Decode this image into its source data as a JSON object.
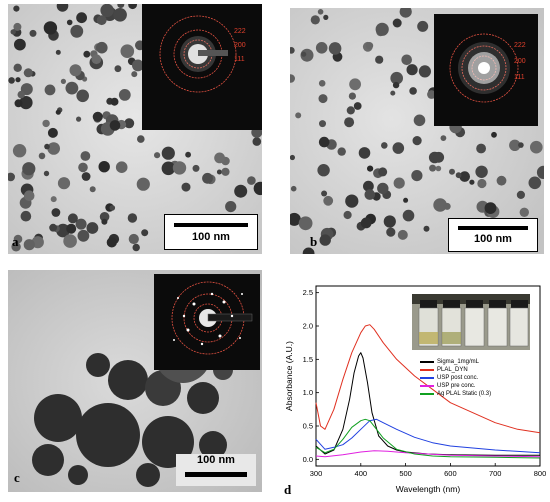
{
  "panels": {
    "a": {
      "label": "a",
      "scale": "100 nm",
      "rings": [
        "222",
        "200",
        "111"
      ]
    },
    "b": {
      "label": "b",
      "scale": "100 nm",
      "rings": [
        "222",
        "200",
        "111"
      ]
    },
    "c": {
      "label": "c",
      "scale": "100 nm"
    },
    "d": {
      "label": "d"
    }
  },
  "chart_data": {
    "type": "line",
    "xlabel": "Wavelength (nm)",
    "ylabel": "Absorbance (A.U.)",
    "xlim": [
      300,
      800
    ],
    "ylim": [
      -0.1,
      2.6
    ],
    "xticks": [
      300,
      400,
      500,
      600,
      700,
      800
    ],
    "yticks": [
      0.0,
      0.5,
      1.0,
      1.5,
      2.0,
      2.5
    ],
    "ytick_labels": [
      "0.0",
      "0.5",
      "1.0",
      "1.5",
      "2.0",
      "2.5"
    ],
    "legend_position": "center",
    "series": [
      {
        "name": "Sigma_1mg/mL",
        "color": "#000000",
        "x": [
          300,
          320,
          340,
          360,
          375,
          385,
          395,
          400,
          405,
          415,
          425,
          440,
          460,
          480,
          500,
          550,
          600,
          700,
          800
        ],
        "y": [
          0.2,
          0.08,
          0.14,
          0.45,
          0.9,
          1.3,
          1.55,
          1.6,
          1.52,
          1.15,
          0.7,
          0.35,
          0.2,
          0.14,
          0.11,
          0.08,
          0.07,
          0.06,
          0.06
        ]
      },
      {
        "name": "PLAL_DYN",
        "color": "#e03020",
        "x": [
          300,
          310,
          320,
          340,
          360,
          380,
          400,
          410,
          420,
          430,
          450,
          480,
          520,
          560,
          600,
          650,
          700,
          750,
          800
        ],
        "y": [
          0.85,
          0.5,
          0.45,
          0.75,
          1.2,
          1.6,
          1.9,
          2.0,
          2.02,
          1.95,
          1.75,
          1.5,
          1.25,
          1.05,
          0.85,
          0.7,
          0.55,
          0.45,
          0.4
        ]
      },
      {
        "name": "USP post conc.",
        "color": "#2040e0",
        "x": [
          300,
          320,
          340,
          360,
          380,
          400,
          420,
          435,
          450,
          480,
          520,
          560,
          600,
          700,
          800
        ],
        "y": [
          0.3,
          0.15,
          0.18,
          0.22,
          0.32,
          0.45,
          0.58,
          0.6,
          0.55,
          0.45,
          0.33,
          0.25,
          0.2,
          0.14,
          0.1
        ]
      },
      {
        "name": "USP pre conc.",
        "color": "#e020e0",
        "x": [
          300,
          320,
          360,
          400,
          430,
          460,
          500,
          550,
          600,
          700,
          800
        ],
        "y": [
          0.05,
          0.04,
          0.07,
          0.11,
          0.13,
          0.12,
          0.1,
          0.08,
          0.06,
          0.05,
          0.04
        ]
      },
      {
        "name": "Ag PLAL Static (0.3)",
        "color": "#10a020",
        "x": [
          300,
          320,
          340,
          360,
          380,
          400,
          410,
          420,
          435,
          450,
          480,
          520,
          560,
          600,
          700,
          800
        ],
        "y": [
          0.18,
          0.1,
          0.15,
          0.3,
          0.48,
          0.58,
          0.6,
          0.58,
          0.45,
          0.32,
          0.15,
          0.08,
          0.05,
          0.04,
          0.03,
          0.02
        ]
      }
    ]
  }
}
